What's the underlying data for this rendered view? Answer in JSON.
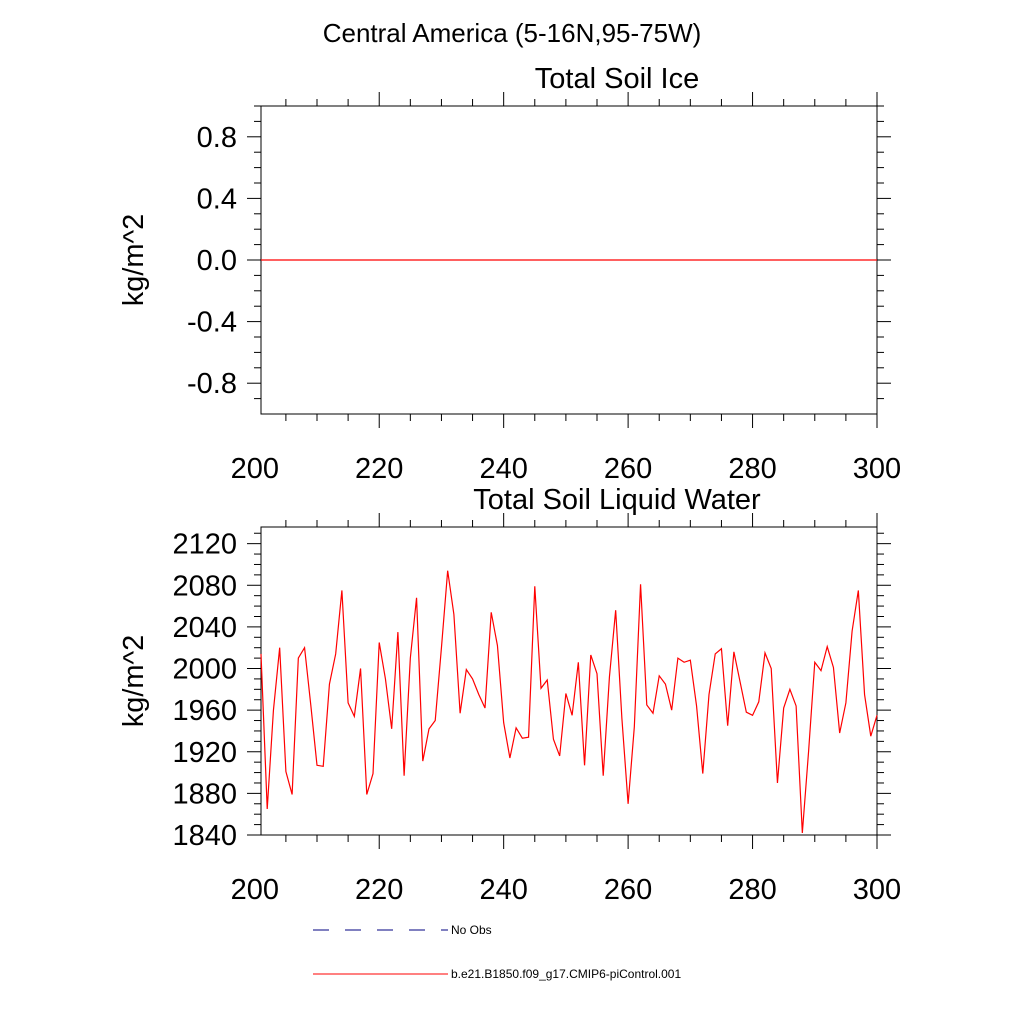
{
  "page": {
    "suptitle": "Central America (5-16N,95-75W)"
  },
  "colors": {
    "model": "#ff0000",
    "obs": "#000080",
    "axis": "#000000"
  },
  "chart_data": [
    {
      "type": "line",
      "title": "Total Soil Ice",
      "xlabel": "",
      "ylabel": "kg/m^2",
      "xlim": [
        201,
        300
      ],
      "ylim": [
        -1.0,
        1.0
      ],
      "xticks": [
        200,
        220,
        240,
        260,
        280,
        300
      ],
      "xtick_labels": [
        "200",
        "220",
        "240",
        "260",
        "280",
        "300"
      ],
      "yticks": [
        -0.8,
        -0.4,
        0.0,
        0.4,
        0.8
      ],
      "ytick_labels": [
        "-0.8",
        "-0.4",
        "0.0",
        "0.4",
        "0.8"
      ],
      "series": [
        {
          "name": "b.e21.B1850.f09_g17.CMIP6-piControl.001",
          "x_start": 201,
          "x_end": 300,
          "constant_value": 0.0
        }
      ]
    },
    {
      "type": "line",
      "title": "Total Soil Liquid Water",
      "xlabel": "",
      "ylabel": "kg/m^2",
      "xlim": [
        201,
        300
      ],
      "ylim": [
        1840,
        2136
      ],
      "xticks": [
        200,
        220,
        240,
        260,
        280,
        300
      ],
      "xtick_labels": [
        "200",
        "220",
        "240",
        "260",
        "280",
        "300"
      ],
      "yticks": [
        1840,
        1880,
        1920,
        1960,
        2000,
        2040,
        2080,
        2120
      ],
      "ytick_labels": [
        "1840",
        "1880",
        "1920",
        "1960",
        "2000",
        "2040",
        "2080",
        "2120"
      ],
      "series": [
        {
          "name": "b.e21.B1850.f09_g17.CMIP6-piControl.001",
          "x_start": 201,
          "values": [
            2014,
            1865,
            1960,
            2020,
            1901,
            1879,
            2010,
            2020,
            1965,
            1907,
            1906,
            1985,
            2014,
            2075,
            1967,
            1954,
            2000,
            1879,
            1899,
            2025,
            1990,
            1942,
            2035,
            1897,
            2010,
            2068,
            1911,
            1942,
            1950,
            2020,
            2094,
            2052,
            1957,
            1999,
            1990,
            1975,
            1962,
            2054,
            2022,
            1948,
            1914,
            1943,
            1933,
            1934,
            2079,
            1981,
            1989,
            1932,
            1916,
            1976,
            1955,
            2006,
            1907,
            2013,
            1995,
            1897,
            1992,
            2056,
            1952,
            1870,
            1944,
            2081,
            1965,
            1957,
            1993,
            1985,
            1960,
            2010,
            2006,
            2008,
            1964,
            1899,
            1975,
            2014,
            2019,
            1945,
            2016,
            1987,
            1958,
            1955,
            1968,
            2015,
            2000,
            1890,
            1962,
            1980,
            1964,
            1842,
            1920,
            2006,
            1998,
            2021,
            2001,
            1938,
            1967,
            2036,
            2075,
            1975,
            1935,
            1955
          ]
        }
      ]
    }
  ],
  "legend": [
    {
      "label": "No Obs",
      "style": "dashed",
      "color": "#000080"
    },
    {
      "label": "b.e21.B1850.f09_g17.CMIP6-piControl.001",
      "style": "solid",
      "color": "#ff0000"
    }
  ]
}
